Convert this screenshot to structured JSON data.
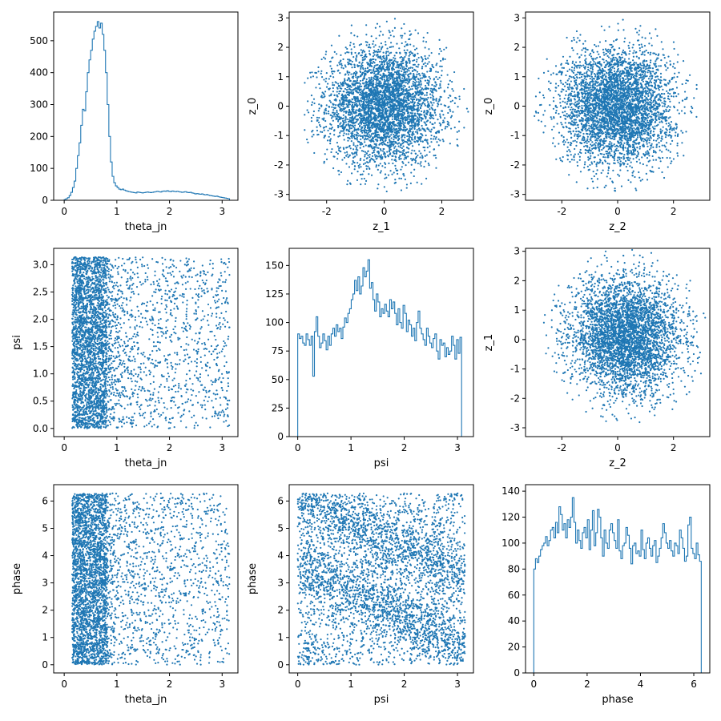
{
  "figure": {
    "series_color": "#1f77b4"
  },
  "chart_data": [
    {
      "type": "histogram",
      "xlabel": "theta_jn",
      "ylabel": "",
      "xlim": [
        -0.2,
        3.3
      ],
      "ylim": [
        0,
        590
      ],
      "xticks": [
        0,
        1,
        2,
        3
      ],
      "yticks": [
        0,
        100,
        200,
        300,
        400,
        500
      ],
      "bin_start": 0.0,
      "bin_width": 0.0314,
      "counts": [
        2,
        5,
        8,
        15,
        25,
        40,
        60,
        100,
        140,
        180,
        235,
        285,
        280,
        340,
        400,
        440,
        470,
        505,
        530,
        545,
        560,
        540,
        555,
        520,
        470,
        400,
        300,
        200,
        120,
        75,
        55,
        45,
        40,
        35,
        33,
        35,
        32,
        30,
        28,
        27,
        26,
        25,
        24,
        23,
        26,
        25,
        24,
        23,
        24,
        25,
        26,
        25,
        24,
        25,
        26,
        27,
        28,
        27,
        26,
        28,
        29,
        28,
        30,
        28,
        27,
        29,
        28,
        27,
        28,
        27,
        26,
        25,
        26,
        27,
        25,
        24,
        25,
        23,
        22,
        20,
        21,
        20,
        19,
        20,
        18,
        17,
        18,
        16,
        15,
        14,
        13,
        12,
        13,
        11,
        10,
        9,
        8,
        7,
        6,
        5
      ]
    },
    {
      "type": "scatter",
      "xlabel": "z_1",
      "ylabel": "z_0",
      "xlim": [
        -3.3,
        3.1
      ],
      "ylim": [
        -3.2,
        3.2
      ],
      "xticks": [
        -2,
        0,
        2
      ],
      "yticks": [
        -3,
        -2,
        -1,
        0,
        1,
        2,
        3
      ],
      "distribution": "gaussian",
      "mean": [
        0,
        0
      ],
      "std": [
        1,
        1
      ],
      "n_points": 4000
    },
    {
      "type": "scatter",
      "xlabel": "z_2",
      "ylabel": "z_0",
      "xlim": [
        -3.3,
        3.3
      ],
      "ylim": [
        -3.2,
        3.2
      ],
      "xticks": [
        -2,
        0,
        2
      ],
      "yticks": [
        -3,
        -2,
        -1,
        0,
        1,
        2,
        3
      ],
      "distribution": "gaussian",
      "mean": [
        0,
        0
      ],
      "std": [
        1,
        1
      ],
      "n_points": 4000
    },
    {
      "type": "scatter",
      "xlabel": "theta_jn",
      "ylabel": "psi",
      "xlim": [
        -0.2,
        3.3
      ],
      "ylim": [
        -0.15,
        3.3
      ],
      "xticks": [
        0,
        1,
        2,
        3
      ],
      "yticks": [
        0.0,
        0.5,
        1.0,
        1.5,
        2.0,
        2.5,
        3.0
      ],
      "ytick_labels": [
        "0.0",
        "0.5",
        "1.0",
        "1.5",
        "2.0",
        "2.5",
        "3.0"
      ],
      "distribution": "band",
      "band_x": [
        0.15,
        0.8
      ],
      "y_range": [
        0,
        3.14
      ],
      "n_band": 2600,
      "n_tail": 1300,
      "tail_x": [
        0.8,
        3.14
      ]
    },
    {
      "type": "histogram",
      "xlabel": "psi",
      "ylabel": "",
      "xlim": [
        -0.16,
        3.3
      ],
      "ylim": [
        0,
        165
      ],
      "xticks": [
        0,
        1,
        2,
        3
      ],
      "yticks": [
        0,
        25,
        50,
        75,
        100,
        125,
        150
      ],
      "bin_start": 0.0,
      "bin_width": 0.0314,
      "counts": [
        90,
        86,
        88,
        82,
        80,
        90,
        85,
        80,
        88,
        53,
        92,
        105,
        88,
        78,
        82,
        90,
        84,
        76,
        88,
        80,
        90,
        95,
        88,
        98,
        92,
        95,
        86,
        96,
        104,
        100,
        108,
        112,
        120,
        125,
        137,
        128,
        140,
        125,
        132,
        148,
        140,
        145,
        155,
        130,
        135,
        120,
        110,
        125,
        118,
        105,
        112,
        108,
        116,
        110,
        105,
        120,
        112,
        118,
        108,
        98,
        112,
        100,
        95,
        115,
        108,
        92,
        102,
        98,
        88,
        95,
        84,
        100,
        110,
        95,
        90,
        85,
        80,
        95,
        88,
        82,
        78,
        86,
        90,
        75,
        68,
        85,
        80,
        82,
        70,
        78,
        72,
        75,
        88,
        80,
        68,
        85,
        73,
        87,
        0,
        0
      ]
    },
    {
      "type": "scatter",
      "xlabel": "z_2",
      "ylabel": "z_1",
      "xlim": [
        -3.3,
        3.3
      ],
      "ylim": [
        -3.3,
        3.1
      ],
      "xticks": [
        -2,
        0,
        2
      ],
      "yticks": [
        -3,
        -2,
        -1,
        0,
        1,
        2,
        3
      ],
      "distribution": "gaussian",
      "mean": [
        0.3,
        0.1
      ],
      "std": [
        1,
        1
      ],
      "n_points": 4000
    },
    {
      "type": "scatter",
      "xlabel": "theta_jn",
      "ylabel": "phase",
      "xlim": [
        -0.2,
        3.3
      ],
      "ylim": [
        -0.3,
        6.6
      ],
      "xticks": [
        0,
        1,
        2,
        3
      ],
      "yticks": [
        0,
        1,
        2,
        3,
        4,
        5,
        6
      ],
      "distribution": "band",
      "band_x": [
        0.15,
        0.8
      ],
      "y_range": [
        0,
        6.28
      ],
      "n_band": 2600,
      "n_tail": 1300,
      "tail_x": [
        0.8,
        3.14
      ]
    },
    {
      "type": "scatter",
      "xlabel": "psi",
      "ylabel": "phase",
      "xlim": [
        -0.16,
        3.3
      ],
      "ylim": [
        -0.3,
        6.6
      ],
      "xticks": [
        0,
        1,
        2,
        3
      ],
      "yticks": [
        0,
        1,
        2,
        3,
        4,
        5,
        6
      ],
      "distribution": "diagonal-bands",
      "uniform_fraction": 0.45,
      "n_points": 4000
    },
    {
      "type": "histogram",
      "xlabel": "phase",
      "ylabel": "",
      "xlim": [
        -0.31,
        6.6
      ],
      "ylim": [
        0,
        145
      ],
      "xticks": [
        0,
        2,
        4,
        6
      ],
      "yticks": [
        0,
        20,
        40,
        60,
        80,
        100,
        120,
        140
      ],
      "bin_start": 0.0,
      "bin_width": 0.0628,
      "counts": [
        80,
        88,
        85,
        90,
        95,
        98,
        100,
        105,
        98,
        102,
        110,
        112,
        104,
        116,
        108,
        128,
        122,
        110,
        115,
        104,
        118,
        112,
        120,
        135,
        116,
        100,
        110,
        102,
        96,
        108,
        112,
        104,
        118,
        95,
        110,
        125,
        98,
        108,
        126,
        120,
        104,
        90,
        110,
        100,
        96,
        110,
        115,
        108,
        102,
        96,
        118,
        94,
        88,
        98,
        100,
        112,
        106,
        96,
        84,
        98,
        100,
        92,
        94,
        90,
        110,
        95,
        88,
        100,
        104,
        96,
        90,
        98,
        102,
        85,
        90,
        96,
        104,
        115,
        108,
        100,
        96,
        102,
        94,
        90,
        100,
        98,
        92,
        110,
        104,
        96,
        86,
        90,
        114,
        120,
        96,
        92,
        88,
        100,
        91,
        86
      ]
    }
  ]
}
